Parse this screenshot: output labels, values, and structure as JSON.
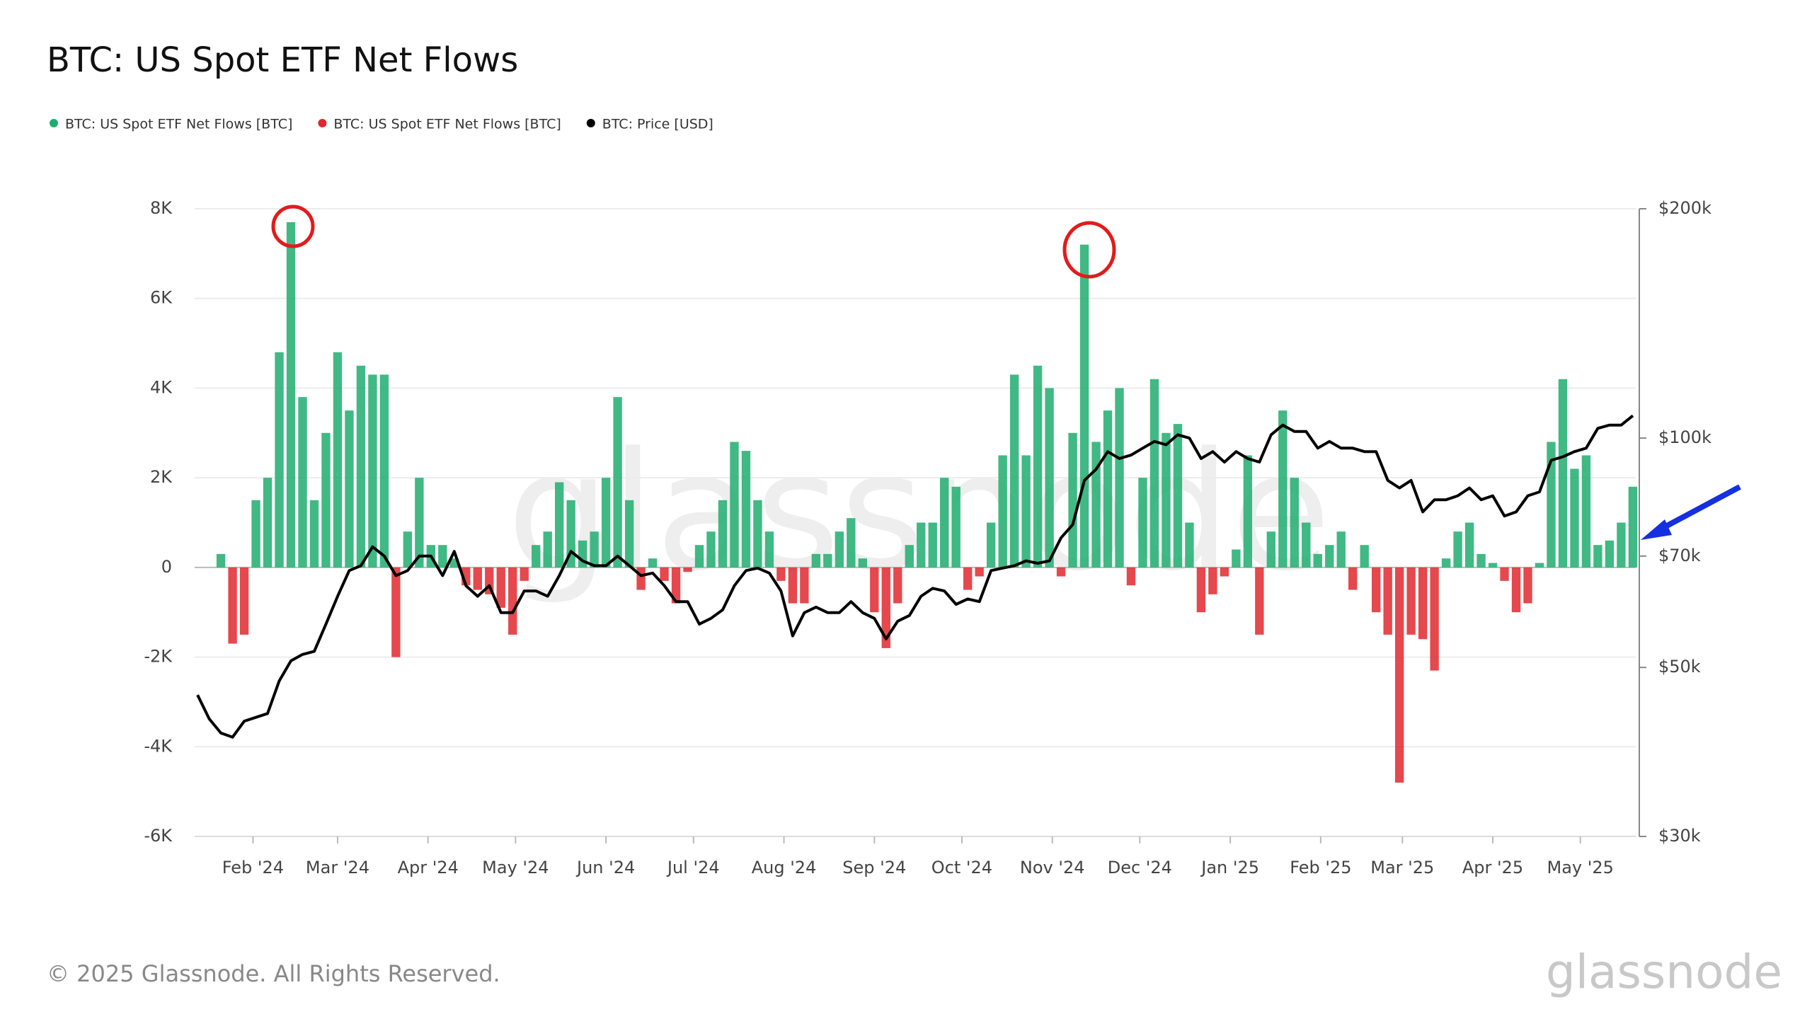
{
  "chart_data": {
    "type": "combo",
    "title": "BTC: US Spot ETF Net Flows",
    "watermark": "glassnode",
    "footer": "© 2025 Glassnode. All Rights Reserved.",
    "logo": "glassnode",
    "grid": true,
    "y2_scale": "log",
    "x": [
      12,
      16,
      20,
      24,
      28,
      32,
      36,
      40,
      44,
      48,
      52,
      56,
      60,
      64,
      68,
      72,
      76,
      80,
      84,
      88,
      92,
      96,
      100,
      104,
      108,
      112,
      116,
      120,
      124,
      128,
      132,
      136,
      140,
      144,
      148,
      152,
      156,
      160,
      164,
      168,
      172,
      176,
      180,
      184,
      188,
      192,
      196,
      200,
      204,
      208,
      212,
      216,
      220,
      224,
      228,
      232,
      236,
      240,
      244,
      248,
      252,
      256,
      260,
      264,
      268,
      272,
      276,
      280,
      284,
      288,
      292,
      296,
      300,
      304,
      308,
      312,
      316,
      320,
      324,
      328,
      332,
      336,
      340,
      344,
      348,
      352,
      356,
      360,
      364,
      368,
      372,
      376,
      380,
      384,
      388,
      392,
      396,
      400,
      404,
      408,
      412,
      416,
      420,
      424,
      428,
      432,
      436,
      440,
      444,
      448,
      452,
      456,
      460,
      464,
      468,
      472,
      476,
      480,
      484,
      488,
      492,
      496,
      500,
      504
    ],
    "xlim": [
      11,
      505
    ],
    "xticks": [
      {
        "value": 31,
        "label": "Feb '24"
      },
      {
        "value": 60,
        "label": "Mar '24"
      },
      {
        "value": 91,
        "label": "Apr '24"
      },
      {
        "value": 121,
        "label": "May '24"
      },
      {
        "value": 152,
        "label": "Jun '24"
      },
      {
        "value": 182,
        "label": "Jul '24"
      },
      {
        "value": 213,
        "label": "Aug '24"
      },
      {
        "value": 244,
        "label": "Sep '24"
      },
      {
        "value": 274,
        "label": "Oct '24"
      },
      {
        "value": 305,
        "label": "Nov '24"
      },
      {
        "value": 335,
        "label": "Dec '24"
      },
      {
        "value": 366,
        "label": "Jan '25"
      },
      {
        "value": 397,
        "label": "Feb '25"
      },
      {
        "value": 425,
        "label": "Mar '25"
      },
      {
        "value": 456,
        "label": "Apr '25"
      },
      {
        "value": 486,
        "label": "May '25"
      }
    ],
    "ylim": [
      -6000,
      8000
    ],
    "yticks": [
      {
        "value": -6000,
        "label": "-6K"
      },
      {
        "value": -4000,
        "label": "-4K"
      },
      {
        "value": -2000,
        "label": "-2K"
      },
      0,
      {
        "value": 2000,
        "label": "2K"
      },
      {
        "value": 4000,
        "label": "4K"
      },
      {
        "value": 6000,
        "label": "6K"
      },
      {
        "value": 8000,
        "label": "8K"
      }
    ],
    "y2lim": [
      30000,
      200000
    ],
    "y2ticks": [
      {
        "value": 30000,
        "label": "$30k"
      },
      {
        "value": 50000,
        "label": "$50k"
      },
      {
        "value": 70000,
        "label": "$70k"
      },
      {
        "value": 100000,
        "label": "$100k"
      },
      {
        "value": 200000,
        "label": "$200k"
      }
    ],
    "series": [
      {
        "name": "BTC: US Spot ETF Net Flows [BTC]",
        "type": "bar",
        "color": "#1fad6f",
        "values": [
          0,
          0,
          300,
          null,
          null,
          1500,
          2000,
          4800,
          7700,
          3800,
          1500,
          3000,
          4800,
          3500,
          4500,
          4300,
          4300,
          null,
          800,
          2000,
          500,
          500,
          200,
          null,
          null,
          null,
          null,
          null,
          null,
          500,
          800,
          1900,
          1500,
          600,
          800,
          2000,
          3800,
          1500,
          null,
          200,
          null,
          null,
          null,
          500,
          800,
          1500,
          2800,
          2600,
          1500,
          800,
          null,
          null,
          null,
          300,
          300,
          800,
          1100,
          200,
          null,
          null,
          null,
          500,
          1000,
          1000,
          2000,
          1800,
          null,
          null,
          1000,
          2500,
          4300,
          2500,
          4500,
          4000,
          null,
          3000,
          7200,
          2800,
          3500,
          4000,
          null,
          2000,
          4200,
          3000,
          3200,
          1000,
          null,
          null,
          null,
          400,
          2500,
          null,
          800,
          3500,
          2000,
          1000,
          300,
          500,
          800,
          null,
          500,
          null,
          null,
          null,
          null,
          null,
          null,
          200,
          800,
          1000,
          300,
          100,
          null,
          null,
          null,
          100,
          2800,
          4200,
          2200,
          2500,
          500,
          600,
          1000,
          1800
        ]
      },
      {
        "name": "BTC: US Spot ETF Net Flows [BTC]",
        "type": "bar",
        "color": "#e0282e",
        "values": [
          null,
          null,
          null,
          -1700,
          -1500,
          null,
          null,
          null,
          null,
          null,
          null,
          null,
          null,
          null,
          null,
          null,
          null,
          -2000,
          null,
          null,
          null,
          null,
          null,
          -400,
          -500,
          -600,
          -900,
          -1500,
          -300,
          null,
          null,
          null,
          null,
          null,
          null,
          null,
          null,
          null,
          -500,
          null,
          -300,
          -800,
          -100,
          null,
          null,
          null,
          null,
          null,
          null,
          null,
          -300,
          -800,
          -800,
          null,
          null,
          null,
          null,
          null,
          -1000,
          -1800,
          -800,
          null,
          null,
          null,
          null,
          null,
          -500,
          -200,
          null,
          null,
          null,
          null,
          null,
          null,
          -200,
          null,
          null,
          null,
          null,
          null,
          -400,
          null,
          null,
          null,
          null,
          null,
          -1000,
          -600,
          -200,
          null,
          null,
          -1500,
          null,
          null,
          null,
          null,
          null,
          null,
          null,
          -500,
          null,
          -1000,
          -1500,
          -4800,
          -1500,
          -1600,
          -2300,
          null,
          null,
          null,
          null,
          null,
          -300,
          -1000,
          -800,
          null,
          null,
          null,
          null,
          null,
          null,
          null,
          null,
          null
        ]
      },
      {
        "name": "BTC: Price [USD]",
        "type": "line",
        "axis": "y2",
        "color": "#000000",
        "values": [
          46000,
          42800,
          41000,
          40500,
          42500,
          43000,
          43500,
          48000,
          51000,
          52000,
          52500,
          57000,
          62000,
          67000,
          68000,
          72000,
          70000,
          66000,
          67000,
          70000,
          70000,
          66000,
          71000,
          64000,
          62000,
          64000,
          59000,
          59000,
          63000,
          63000,
          62000,
          66000,
          71000,
          69000,
          68000,
          68000,
          70000,
          68000,
          66000,
          66500,
          64000,
          61000,
          61000,
          57000,
          58000,
          59500,
          64000,
          67000,
          67500,
          66500,
          63000,
          55000,
          59000,
          60000,
          59000,
          59000,
          61000,
          59000,
          58000,
          54500,
          57500,
          58500,
          62000,
          63500,
          63000,
          60500,
          61500,
          61000,
          67000,
          67500,
          68000,
          69000,
          68500,
          69000,
          74000,
          77000,
          88000,
          91000,
          96000,
          94000,
          95000,
          97000,
          99000,
          98000,
          101000,
          100000,
          94000,
          96000,
          93000,
          96000,
          94000,
          93000,
          101000,
          104000,
          102000,
          102000,
          97000,
          99000,
          97000,
          97000,
          96000,
          96000,
          88000,
          86000,
          88000,
          80000,
          83000,
          83000,
          84000,
          86000,
          83000,
          84000,
          79000,
          80000,
          84000,
          85000,
          93500,
          94500,
          96000,
          97000,
          103000,
          104000,
          104000,
          107000
        ]
      }
    ]
  }
}
